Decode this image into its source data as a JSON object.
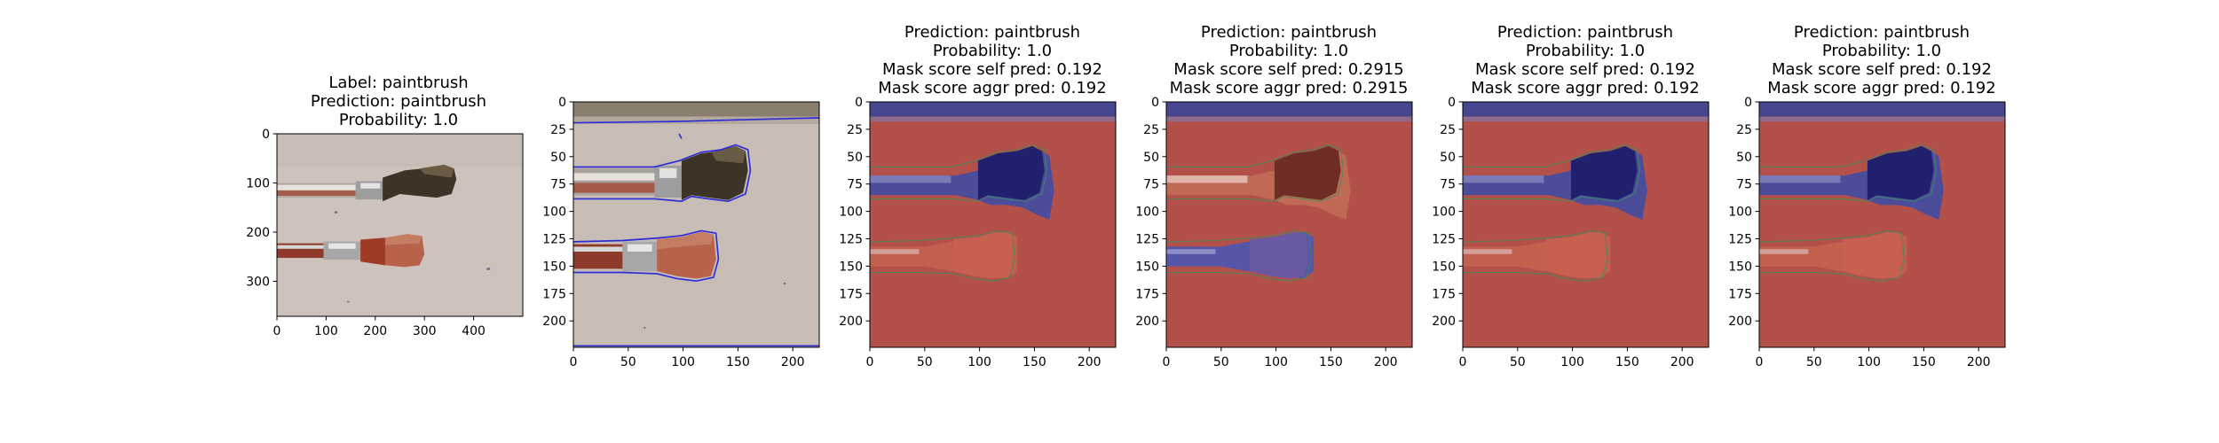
{
  "colors": {
    "paper_background": "#bfb3ab",
    "paper_light": "#d6cdc6",
    "paper_top_strip": "#8a7e6f",
    "brush_dark_tip": "#3f3527",
    "brush_red_handle": "#a13b25",
    "brush_ferrule": "#9a9a9a",
    "contour_line": "#2b2bd8",
    "mask_red": "#b4504a",
    "mask_blue": "#45468f",
    "mask_dark_blue": "#20206e",
    "mask_purple": "#6a58a3"
  },
  "panels": [
    {
      "title": [
        "Label: paintbrush",
        "Prediction: paintbrush",
        "Probability: 1.0"
      ],
      "image": "original-photo",
      "xticks": [
        "0",
        "100",
        "200",
        "300",
        "400"
      ],
      "yticks": [
        "0",
        "100",
        "200",
        "300"
      ]
    },
    {
      "title": [],
      "image": "contour-overlay",
      "xticks": [
        "0",
        "50",
        "100",
        "150",
        "200"
      ],
      "yticks": [
        "0",
        "25",
        "50",
        "75",
        "100",
        "125",
        "150",
        "175",
        "200"
      ]
    },
    {
      "title": [
        "Prediction: paintbrush",
        "Probability: 1.0",
        "Mask score self pred: 0.192",
        "Mask score aggr pred: 0.192"
      ],
      "image": "mask-top-brush-blue",
      "xticks": [
        "0",
        "50",
        "100",
        "150",
        "200"
      ],
      "yticks": [
        "0",
        "25",
        "50",
        "75",
        "100",
        "125",
        "150",
        "175",
        "200"
      ]
    },
    {
      "title": [
        "Prediction: paintbrush",
        "Probability: 1.0",
        "Mask score self pred: 0.2915",
        "Mask score aggr pred: 0.2915"
      ],
      "image": "mask-bottom-brush-blue",
      "xticks": [
        "0",
        "50",
        "100",
        "150",
        "200"
      ],
      "yticks": [
        "0",
        "25",
        "50",
        "75",
        "100",
        "125",
        "150",
        "175",
        "200"
      ]
    },
    {
      "title": [
        "Prediction: paintbrush",
        "Probability: 1.0",
        "Mask score self pred: 0.192",
        "Mask score aggr pred: 0.192"
      ],
      "image": "mask-top-brush-blue",
      "xticks": [
        "0",
        "50",
        "100",
        "150",
        "200"
      ],
      "yticks": [
        "0",
        "25",
        "50",
        "75",
        "100",
        "125",
        "150",
        "175",
        "200"
      ]
    },
    {
      "title": [
        "Prediction: paintbrush",
        "Probability: 1.0",
        "Mask score self pred: 0.192",
        "Mask score aggr pred: 0.192"
      ],
      "image": "mask-top-brush-blue",
      "xticks": [
        "0",
        "50",
        "100",
        "150",
        "200"
      ],
      "yticks": [
        "0",
        "25",
        "50",
        "75",
        "100",
        "125",
        "150",
        "175",
        "200"
      ]
    }
  ]
}
